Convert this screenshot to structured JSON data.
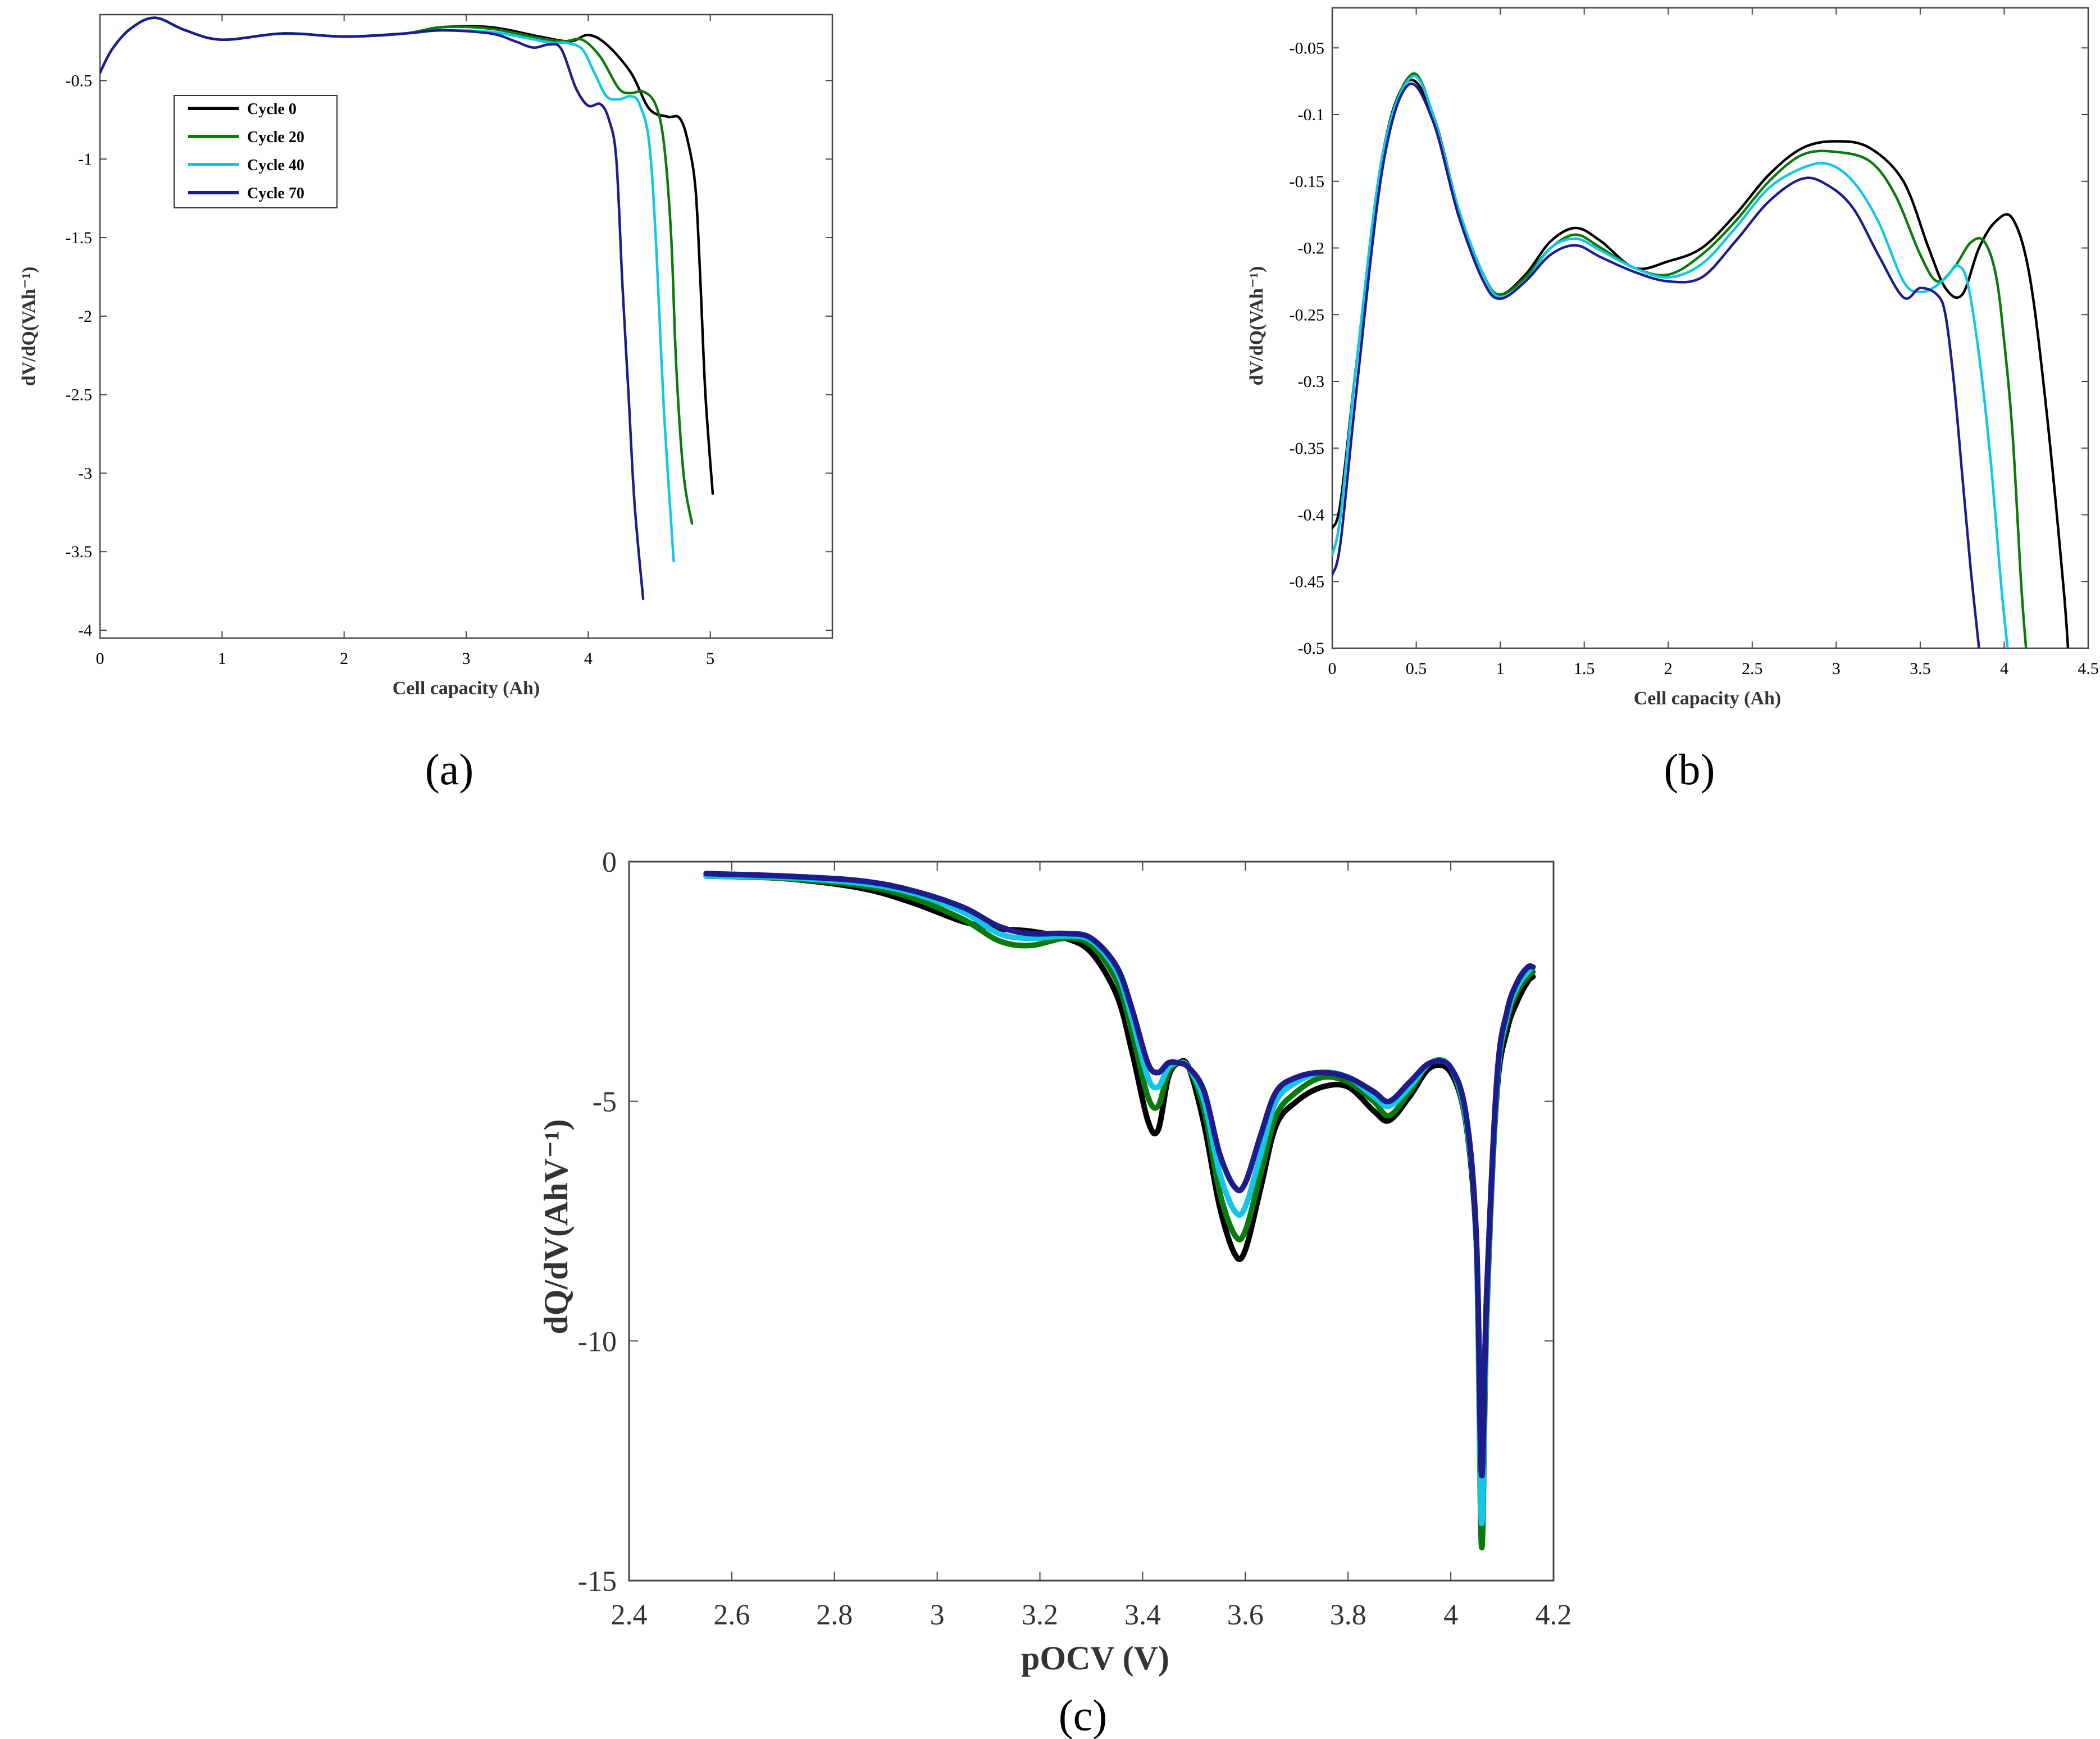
{
  "colors": {
    "cycle0": "#000000",
    "cycle20": "#0a7a0a",
    "cycle40": "#12c6e8",
    "cycle70": "#1c1c8c",
    "axis": "#333333"
  },
  "chart_data": [
    {
      "id": "a",
      "panel_label": "(a)",
      "type": "line",
      "title": "",
      "xlabel": "Cell capacity (Ah)",
      "ylabel": "dV/dQ(VAh⁻¹)",
      "xlim": [
        0,
        6
      ],
      "ylim": [
        -4.05,
        -0.08
      ],
      "xticks": [
        0,
        1,
        2,
        3,
        4,
        5
      ],
      "yticks": [
        -0.5,
        -1,
        -1.5,
        -2,
        -2.5,
        -3,
        -3.5,
        -4
      ],
      "xtick_labels": [
        "0",
        "1",
        "2",
        "3",
        "4",
        "5"
      ],
      "ytick_labels": [
        "-0.5",
        "-1",
        "-1.5",
        "-2",
        "-2.5",
        "-3",
        "-3.5",
        "-4"
      ],
      "legend": {
        "placement": "top-left",
        "entries": [
          "Cycle 0",
          "Cycle 20",
          "Cycle 40",
          "Cycle 70"
        ]
      },
      "series": [
        {
          "name": "Cycle 0",
          "color_key": "cycle0",
          "x": [
            0,
            0.1,
            0.25,
            0.45,
            0.7,
            1.0,
            1.5,
            2.0,
            2.5,
            2.8,
            3.2,
            3.6,
            3.85,
            4.0,
            4.15,
            4.35,
            4.5,
            4.65,
            4.75,
            4.82,
            4.88,
            4.92,
            4.96,
            5.02
          ],
          "y": [
            -0.45,
            -0.3,
            -0.17,
            -0.1,
            -0.18,
            -0.24,
            -0.2,
            -0.22,
            -0.2,
            -0.16,
            -0.16,
            -0.22,
            -0.25,
            -0.21,
            -0.27,
            -0.45,
            -0.68,
            -0.73,
            -0.74,
            -0.9,
            -1.2,
            -1.8,
            -2.5,
            -3.13
          ]
        },
        {
          "name": "Cycle 20",
          "color_key": "cycle20",
          "x": [
            0,
            0.1,
            0.25,
            0.45,
            0.7,
            1.0,
            1.5,
            2.0,
            2.5,
            2.8,
            3.2,
            3.6,
            3.8,
            3.95,
            4.1,
            4.25,
            4.35,
            4.45,
            4.55,
            4.62,
            4.68,
            4.72,
            4.78,
            4.85
          ],
          "y": [
            -0.45,
            -0.3,
            -0.17,
            -0.1,
            -0.18,
            -0.24,
            -0.2,
            -0.22,
            -0.2,
            -0.16,
            -0.17,
            -0.23,
            -0.25,
            -0.24,
            -0.35,
            -0.55,
            -0.58,
            -0.57,
            -0.65,
            -0.9,
            -1.5,
            -2.3,
            -3.0,
            -3.32
          ]
        },
        {
          "name": "Cycle 40",
          "color_key": "cycle40",
          "x": [
            0,
            0.1,
            0.25,
            0.45,
            0.7,
            1.0,
            1.5,
            2.0,
            2.5,
            2.8,
            3.2,
            3.5,
            3.7,
            3.82,
            3.95,
            4.05,
            4.15,
            4.25,
            4.35,
            4.42,
            4.5,
            4.56,
            4.62,
            4.7
          ],
          "y": [
            -0.45,
            -0.3,
            -0.17,
            -0.1,
            -0.18,
            -0.24,
            -0.2,
            -0.22,
            -0.2,
            -0.18,
            -0.19,
            -0.23,
            -0.26,
            -0.26,
            -0.3,
            -0.45,
            -0.6,
            -0.62,
            -0.6,
            -0.65,
            -0.9,
            -1.6,
            -2.6,
            -3.56
          ]
        },
        {
          "name": "Cycle 70",
          "color_key": "cycle70",
          "x": [
            0,
            0.1,
            0.25,
            0.45,
            0.7,
            1.0,
            1.5,
            2.0,
            2.5,
            2.8,
            3.2,
            3.4,
            3.55,
            3.68,
            3.78,
            3.9,
            4.0,
            4.1,
            4.17,
            4.23,
            4.28,
            4.33,
            4.38,
            4.45
          ],
          "y": [
            -0.45,
            -0.3,
            -0.17,
            -0.1,
            -0.18,
            -0.24,
            -0.2,
            -0.22,
            -0.2,
            -0.18,
            -0.2,
            -0.25,
            -0.29,
            -0.27,
            -0.3,
            -0.55,
            -0.66,
            -0.65,
            -0.75,
            -1.0,
            -1.8,
            -2.5,
            -3.2,
            -3.8
          ]
        }
      ]
    },
    {
      "id": "b",
      "panel_label": "(b)",
      "type": "line",
      "title": "",
      "xlabel": "Cell capacity (Ah)",
      "ylabel": "dV/dQ(VAh⁻¹)",
      "xlim": [
        0,
        4.5
      ],
      "ylim": [
        -0.5,
        -0.02
      ],
      "xticks": [
        0,
        0.5,
        1,
        1.5,
        2,
        2.5,
        3,
        3.5,
        4,
        4.5
      ],
      "yticks": [
        -0.05,
        -0.1,
        -0.15,
        -0.2,
        -0.25,
        -0.3,
        -0.35,
        -0.4,
        -0.45,
        -0.5
      ],
      "xtick_labels": [
        "0",
        "0.5",
        "1",
        "1.5",
        "2",
        "2.5",
        "3",
        "3.5",
        "4",
        "4.5"
      ],
      "ytick_labels": [
        "-0.05",
        "-0.1",
        "-0.15",
        "-0.2",
        "-0.25",
        "-0.3",
        "-0.35",
        "-0.4",
        "-0.45",
        "-0.5"
      ],
      "series": [
        {
          "name": "Cycle 0",
          "color_key": "cycle0",
          "x": [
            0,
            0.05,
            0.15,
            0.3,
            0.45,
            0.6,
            0.75,
            0.9,
            1.0,
            1.15,
            1.3,
            1.45,
            1.6,
            1.8,
            2.0,
            2.2,
            2.4,
            2.6,
            2.8,
            3.0,
            3.2,
            3.4,
            3.55,
            3.65,
            3.75,
            3.85,
            3.95,
            4.05,
            4.15,
            4.25,
            4.35,
            4.38
          ],
          "y": [
            -0.41,
            -0.39,
            -0.28,
            -0.13,
            -0.075,
            -0.1,
            -0.17,
            -0.22,
            -0.235,
            -0.22,
            -0.195,
            -0.185,
            -0.195,
            -0.215,
            -0.21,
            -0.2,
            -0.175,
            -0.145,
            -0.125,
            -0.12,
            -0.125,
            -0.15,
            -0.2,
            -0.23,
            -0.235,
            -0.2,
            -0.18,
            -0.178,
            -0.22,
            -0.32,
            -0.45,
            -0.5
          ]
        },
        {
          "name": "Cycle 20",
          "color_key": "cycle20",
          "x": [
            0,
            0.05,
            0.15,
            0.3,
            0.47,
            0.6,
            0.75,
            0.9,
            1.0,
            1.15,
            1.3,
            1.45,
            1.6,
            1.8,
            2.0,
            2.2,
            2.4,
            2.6,
            2.8,
            3.0,
            3.2,
            3.35,
            3.5,
            3.6,
            3.7,
            3.8,
            3.88,
            3.95,
            4.0,
            4.05,
            4.1,
            4.13
          ],
          "y": [
            -0.43,
            -0.4,
            -0.28,
            -0.13,
            -0.07,
            -0.1,
            -0.17,
            -0.22,
            -0.235,
            -0.222,
            -0.2,
            -0.19,
            -0.2,
            -0.215,
            -0.22,
            -0.205,
            -0.18,
            -0.15,
            -0.13,
            -0.128,
            -0.135,
            -0.16,
            -0.205,
            -0.225,
            -0.215,
            -0.196,
            -0.195,
            -0.22,
            -0.27,
            -0.34,
            -0.45,
            -0.5
          ]
        },
        {
          "name": "Cycle 40",
          "color_key": "cycle40",
          "x": [
            0,
            0.05,
            0.15,
            0.3,
            0.47,
            0.6,
            0.75,
            0.9,
            1.0,
            1.15,
            1.3,
            1.45,
            1.6,
            1.8,
            2.0,
            2.2,
            2.4,
            2.6,
            2.8,
            2.95,
            3.1,
            3.25,
            3.4,
            3.5,
            3.6,
            3.68,
            3.72,
            3.78,
            3.85,
            3.92,
            3.98,
            4.02
          ],
          "y": [
            -0.43,
            -0.4,
            -0.28,
            -0.13,
            -0.072,
            -0.1,
            -0.17,
            -0.22,
            -0.237,
            -0.225,
            -0.2,
            -0.193,
            -0.202,
            -0.215,
            -0.222,
            -0.212,
            -0.185,
            -0.155,
            -0.14,
            -0.137,
            -0.15,
            -0.18,
            -0.225,
            -0.233,
            -0.228,
            -0.218,
            -0.213,
            -0.225,
            -0.28,
            -0.36,
            -0.45,
            -0.5
          ]
        },
        {
          "name": "Cycle 70",
          "color_key": "cycle70",
          "x": [
            0,
            0.05,
            0.15,
            0.3,
            0.45,
            0.6,
            0.75,
            0.9,
            1.0,
            1.15,
            1.3,
            1.45,
            1.6,
            1.8,
            2.0,
            2.2,
            2.4,
            2.6,
            2.8,
            2.95,
            3.1,
            3.25,
            3.4,
            3.5,
            3.6,
            3.65,
            3.7,
            3.75,
            3.8,
            3.85
          ],
          "y": [
            -0.445,
            -0.42,
            -0.3,
            -0.14,
            -0.078,
            -0.105,
            -0.175,
            -0.225,
            -0.238,
            -0.225,
            -0.205,
            -0.198,
            -0.207,
            -0.218,
            -0.225,
            -0.222,
            -0.195,
            -0.165,
            -0.148,
            -0.153,
            -0.17,
            -0.205,
            -0.237,
            -0.23,
            -0.235,
            -0.25,
            -0.3,
            -0.37,
            -0.44,
            -0.5
          ]
        }
      ]
    },
    {
      "id": "c",
      "panel_label": "(c)",
      "type": "line",
      "title": "",
      "xlabel": "pOCV (V)",
      "ylabel": "dQ/dV(AhV⁻¹)",
      "xlim": [
        2.4,
        4.2
      ],
      "ylim": [
        -15,
        0
      ],
      "xticks": [
        2.4,
        2.6,
        2.8,
        3.0,
        3.2,
        3.4,
        3.6,
        3.8,
        4.0,
        4.2
      ],
      "yticks": [
        0,
        -5,
        -10,
        -15
      ],
      "xtick_labels": [
        "2.4",
        "2.6",
        "2.8",
        "3",
        "3.2",
        "3.4",
        "3.6",
        "3.8",
        "4",
        "4.2"
      ],
      "ytick_labels": [
        "0",
        "-5",
        "-10",
        "-15"
      ],
      "series": [
        {
          "name": "Cycle 0",
          "color_key": "cycle0",
          "x": [
            2.55,
            2.7,
            2.85,
            2.95,
            3.05,
            3.12,
            3.18,
            3.25,
            3.3,
            3.35,
            3.38,
            3.41,
            3.43,
            3.45,
            3.47,
            3.49,
            3.52,
            3.55,
            3.58,
            3.6,
            3.63,
            3.66,
            3.7,
            3.75,
            3.8,
            3.85,
            3.88,
            3.92,
            3.96,
            4.0,
            4.03,
            4.05,
            4.06,
            4.07,
            4.09,
            4.11,
            4.13,
            4.15,
            4.16
          ],
          "y": [
            -0.3,
            -0.35,
            -0.55,
            -0.85,
            -1.25,
            -1.4,
            -1.45,
            -1.6,
            -1.9,
            -2.8,
            -4.0,
            -5.4,
            -5.6,
            -4.5,
            -4.2,
            -4.3,
            -5.5,
            -7.2,
            -8.2,
            -8.1,
            -6.8,
            -5.5,
            -5.0,
            -4.7,
            -4.7,
            -5.2,
            -5.4,
            -4.9,
            -4.3,
            -4.4,
            -5.5,
            -8.0,
            -12.5,
            -9.0,
            -4.8,
            -3.5,
            -2.9,
            -2.5,
            -2.4
          ]
        },
        {
          "name": "Cycle 20",
          "color_key": "cycle20",
          "x": [
            2.55,
            2.7,
            2.85,
            2.95,
            3.05,
            3.12,
            3.18,
            3.25,
            3.3,
            3.35,
            3.38,
            3.41,
            3.43,
            3.45,
            3.47,
            3.49,
            3.52,
            3.55,
            3.58,
            3.6,
            3.63,
            3.66,
            3.7,
            3.75,
            3.8,
            3.85,
            3.88,
            3.92,
            3.96,
            4.0,
            4.03,
            4.05,
            4.06,
            4.07,
            4.09,
            4.11,
            4.13,
            4.15,
            4.16
          ],
          "y": [
            -0.3,
            -0.35,
            -0.5,
            -0.75,
            -1.2,
            -1.65,
            -1.75,
            -1.6,
            -1.75,
            -2.5,
            -3.6,
            -4.9,
            -5.1,
            -4.4,
            -4.2,
            -4.3,
            -5.2,
            -6.9,
            -7.8,
            -7.7,
            -6.5,
            -5.3,
            -4.8,
            -4.5,
            -4.6,
            -5.0,
            -5.3,
            -4.8,
            -4.2,
            -4.3,
            -5.5,
            -8.0,
            -14.3,
            -9.5,
            -4.7,
            -3.3,
            -2.7,
            -2.4,
            -2.3
          ]
        },
        {
          "name": "Cycle 40",
          "color_key": "cycle40",
          "x": [
            2.55,
            2.7,
            2.85,
            2.95,
            3.05,
            3.12,
            3.18,
            3.25,
            3.3,
            3.35,
            3.38,
            3.41,
            3.43,
            3.45,
            3.47,
            3.49,
            3.52,
            3.55,
            3.58,
            3.6,
            3.63,
            3.66,
            3.7,
            3.75,
            3.8,
            3.85,
            3.88,
            3.92,
            3.96,
            4.0,
            4.03,
            4.05,
            4.06,
            4.07,
            4.09,
            4.11,
            4.13,
            4.15,
            4.16
          ],
          "y": [
            -0.3,
            -0.33,
            -0.45,
            -0.65,
            -1.05,
            -1.5,
            -1.6,
            -1.55,
            -1.65,
            -2.3,
            -3.3,
            -4.5,
            -4.7,
            -4.3,
            -4.2,
            -4.3,
            -5.0,
            -6.5,
            -7.3,
            -7.2,
            -6.1,
            -5.0,
            -4.6,
            -4.4,
            -4.5,
            -4.9,
            -5.1,
            -4.7,
            -4.2,
            -4.3,
            -5.4,
            -8.0,
            -13.8,
            -9.2,
            -4.6,
            -3.2,
            -2.6,
            -2.3,
            -2.2
          ]
        },
        {
          "name": "Cycle 70",
          "color_key": "cycle70",
          "x": [
            2.55,
            2.7,
            2.85,
            2.95,
            3.05,
            3.12,
            3.18,
            3.25,
            3.3,
            3.35,
            3.38,
            3.41,
            3.43,
            3.45,
            3.47,
            3.49,
            3.52,
            3.55,
            3.58,
            3.6,
            3.63,
            3.66,
            3.7,
            3.75,
            3.8,
            3.85,
            3.88,
            3.92,
            3.96,
            4.0,
            4.03,
            4.05,
            4.06,
            4.07,
            4.09,
            4.11,
            4.13,
            4.15,
            4.16
          ],
          "y": [
            -0.25,
            -0.3,
            -0.4,
            -0.6,
            -0.95,
            -1.35,
            -1.5,
            -1.5,
            -1.6,
            -2.2,
            -3.1,
            -4.2,
            -4.4,
            -4.2,
            -4.2,
            -4.3,
            -4.8,
            -6.1,
            -6.8,
            -6.7,
            -5.7,
            -4.8,
            -4.5,
            -4.4,
            -4.5,
            -4.8,
            -5.0,
            -4.6,
            -4.2,
            -4.3,
            -5.3,
            -7.9,
            -12.8,
            -9.0,
            -4.5,
            -3.1,
            -2.5,
            -2.2,
            -2.2
          ]
        }
      ]
    }
  ]
}
